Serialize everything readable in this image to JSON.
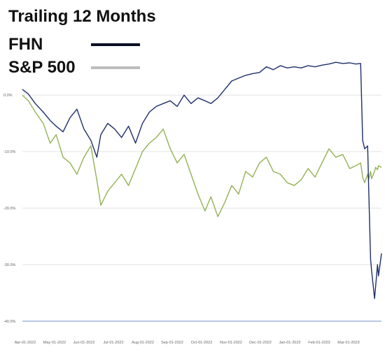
{
  "chart_data": {
    "type": "line",
    "title": "Trailing 12 Months",
    "xlabel": "",
    "ylabel": "",
    "ylim": [
      -40,
      2
    ],
    "yticks": [
      0,
      -10,
      -20,
      -30,
      -40
    ],
    "ytick_labels": [
      "0.0%",
      "-10.0%",
      "-20.0%",
      "-30.0%",
      "-40.0%"
    ],
    "grid": true,
    "legend_position": "top-left",
    "xtick_labels": [
      "Apr-01-2022",
      "May-01-2022",
      "Jun-01-2022",
      "Jul-01-2022",
      "Aug-01-2022",
      "Sep-01-2022",
      "Oct-01-2022",
      "Nov-01-2022",
      "Dec-01-2022",
      "Jan-01-2023",
      "Feb-01-2023",
      "Mar-01-2023"
    ],
    "x_range": [
      "2022-03-30",
      "2023-03-27"
    ],
    "series": [
      {
        "name": "FHN",
        "color": "#1f2f6b",
        "legend_color": "#0a0f26",
        "points": [
          [
            "2022-03-30",
            1.0
          ],
          [
            "2022-04-05",
            0.2
          ],
          [
            "2022-04-12",
            -1.5
          ],
          [
            "2022-04-20",
            -3.0
          ],
          [
            "2022-04-27",
            -4.5
          ],
          [
            "2022-05-03",
            -5.5
          ],
          [
            "2022-05-10",
            -6.5
          ],
          [
            "2022-05-17",
            -4.0
          ],
          [
            "2022-05-24",
            -2.5
          ],
          [
            "2022-05-31",
            -6.0
          ],
          [
            "2022-06-07",
            -8.0
          ],
          [
            "2022-06-13",
            -11.0
          ],
          [
            "2022-06-17",
            -7.0
          ],
          [
            "2022-06-24",
            -5.0
          ],
          [
            "2022-07-01",
            -6.0
          ],
          [
            "2022-07-08",
            -7.5
          ],
          [
            "2022-07-15",
            -5.5
          ],
          [
            "2022-07-22",
            -8.5
          ],
          [
            "2022-07-29",
            -5.0
          ],
          [
            "2022-08-05",
            -3.0
          ],
          [
            "2022-08-12",
            -2.0
          ],
          [
            "2022-08-19",
            -1.5
          ],
          [
            "2022-08-26",
            -1.0
          ],
          [
            "2022-09-02",
            -2.0
          ],
          [
            "2022-09-09",
            0.0
          ],
          [
            "2022-09-16",
            -1.5
          ],
          [
            "2022-09-23",
            -0.5
          ],
          [
            "2022-09-30",
            -1.0
          ],
          [
            "2022-10-06",
            -1.5
          ],
          [
            "2022-10-13",
            -0.5
          ],
          [
            "2022-10-20",
            1.0
          ],
          [
            "2022-10-27",
            2.5
          ],
          [
            "2022-11-03",
            3.0
          ],
          [
            "2022-11-10",
            3.5
          ],
          [
            "2022-11-17",
            3.8
          ],
          [
            "2022-11-24",
            4.0
          ],
          [
            "2022-12-01",
            5.0
          ],
          [
            "2022-12-08",
            4.5
          ],
          [
            "2022-12-15",
            5.2
          ],
          [
            "2022-12-22",
            4.8
          ],
          [
            "2022-12-29",
            5.0
          ],
          [
            "2023-01-05",
            4.8
          ],
          [
            "2023-01-12",
            5.2
          ],
          [
            "2023-01-19",
            5.0
          ],
          [
            "2023-01-26",
            5.3
          ],
          [
            "2023-02-02",
            5.5
          ],
          [
            "2023-02-09",
            5.8
          ],
          [
            "2023-02-16",
            5.6
          ],
          [
            "2023-02-23",
            5.7
          ],
          [
            "2023-03-01",
            5.5
          ],
          [
            "2023-03-06",
            5.6
          ],
          [
            "2023-03-08",
            -8.0
          ],
          [
            "2023-03-10",
            -9.5
          ],
          [
            "2023-03-13",
            -9.0
          ],
          [
            "2023-03-14",
            -16.0
          ],
          [
            "2023-03-16",
            -29.0
          ],
          [
            "2023-03-17",
            -31.0
          ],
          [
            "2023-03-20",
            -36.0
          ],
          [
            "2023-03-21",
            -34.0
          ],
          [
            "2023-03-23",
            -30.0
          ],
          [
            "2023-03-24",
            -32.0
          ],
          [
            "2023-03-27",
            -28.0
          ]
        ]
      },
      {
        "name": "S&P 500",
        "color": "#93b155",
        "legend_color": "#bdbdbd",
        "points": [
          [
            "2022-03-30",
            0.0
          ],
          [
            "2022-04-05",
            -1.0
          ],
          [
            "2022-04-12",
            -3.0
          ],
          [
            "2022-04-20",
            -5.0
          ],
          [
            "2022-04-27",
            -8.5
          ],
          [
            "2022-05-03",
            -7.0
          ],
          [
            "2022-05-10",
            -11.0
          ],
          [
            "2022-05-17",
            -12.0
          ],
          [
            "2022-05-24",
            -14.0
          ],
          [
            "2022-05-31",
            -11.0
          ],
          [
            "2022-06-07",
            -9.0
          ],
          [
            "2022-06-13",
            -15.0
          ],
          [
            "2022-06-17",
            -19.5
          ],
          [
            "2022-06-24",
            -17.0
          ],
          [
            "2022-07-01",
            -15.5
          ],
          [
            "2022-07-08",
            -14.0
          ],
          [
            "2022-07-15",
            -16.0
          ],
          [
            "2022-07-22",
            -13.0
          ],
          [
            "2022-07-29",
            -10.0
          ],
          [
            "2022-08-05",
            -8.5
          ],
          [
            "2022-08-12",
            -7.5
          ],
          [
            "2022-08-19",
            -6.0
          ],
          [
            "2022-08-26",
            -9.5
          ],
          [
            "2022-09-02",
            -12.0
          ],
          [
            "2022-09-09",
            -10.5
          ],
          [
            "2022-09-16",
            -14.0
          ],
          [
            "2022-09-23",
            -17.5
          ],
          [
            "2022-09-30",
            -20.5
          ],
          [
            "2022-10-06",
            -18.0
          ],
          [
            "2022-10-13",
            -21.5
          ],
          [
            "2022-10-20",
            -19.0
          ],
          [
            "2022-10-27",
            -16.0
          ],
          [
            "2022-11-03",
            -17.5
          ],
          [
            "2022-11-10",
            -13.5
          ],
          [
            "2022-11-17",
            -14.5
          ],
          [
            "2022-11-24",
            -12.0
          ],
          [
            "2022-12-01",
            -11.0
          ],
          [
            "2022-12-08",
            -13.5
          ],
          [
            "2022-12-15",
            -14.0
          ],
          [
            "2022-12-22",
            -15.5
          ],
          [
            "2022-12-29",
            -16.0
          ],
          [
            "2023-01-05",
            -15.0
          ],
          [
            "2023-01-12",
            -13.0
          ],
          [
            "2023-01-19",
            -14.5
          ],
          [
            "2023-01-26",
            -12.0
          ],
          [
            "2023-02-02",
            -9.5
          ],
          [
            "2023-02-09",
            -11.0
          ],
          [
            "2023-02-16",
            -10.5
          ],
          [
            "2023-02-23",
            -13.0
          ],
          [
            "2023-03-01",
            -12.5
          ],
          [
            "2023-03-06",
            -12.0
          ],
          [
            "2023-03-08",
            -14.5
          ],
          [
            "2023-03-10",
            -15.5
          ],
          [
            "2023-03-13",
            -14.0
          ],
          [
            "2023-03-14",
            -15.0
          ],
          [
            "2023-03-16",
            -13.5
          ],
          [
            "2023-03-17",
            -14.8
          ],
          [
            "2023-03-20",
            -13.5
          ],
          [
            "2023-03-21",
            -12.8
          ],
          [
            "2023-03-23",
            -13.2
          ],
          [
            "2023-03-24",
            -12.5
          ],
          [
            "2023-03-27",
            -12.8
          ]
        ]
      }
    ]
  }
}
